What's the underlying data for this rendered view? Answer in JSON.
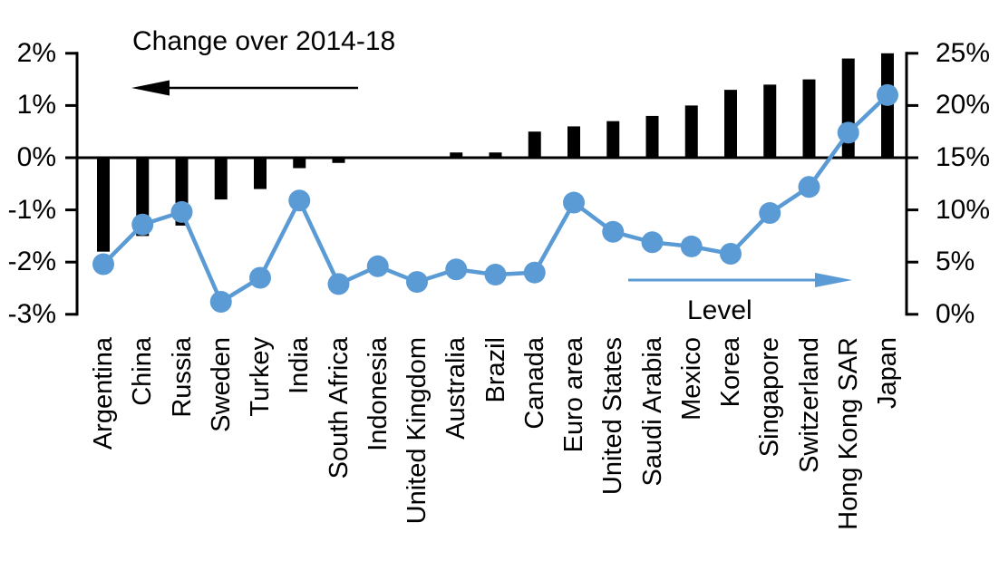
{
  "chart_data": {
    "type": "combo_bar_line",
    "title_bar_series": "Change over 2014-18",
    "title_line_series": "Level",
    "categories": [
      "Argentina",
      "China",
      "Russia",
      "Sweden",
      "Turkey",
      "India",
      "South Africa",
      "Indonesia",
      "United Kingdom",
      "Australia",
      "Brazil",
      "Canada",
      "Euro area",
      "United States",
      "Saudi Arabia",
      "Mexico",
      "Korea",
      "Singapore",
      "Switzerland",
      "Hong Kong SAR",
      "Japan"
    ],
    "series": [
      {
        "name": "Change over 2014-18",
        "type": "bar",
        "axis": "left",
        "color": "#000000",
        "values": [
          -1.8,
          -1.5,
          -1.3,
          -0.8,
          -0.6,
          -0.2,
          -0.1,
          0,
          0,
          0.1,
          0.1,
          0.5,
          0.6,
          0.7,
          0.8,
          1.0,
          1.3,
          1.4,
          1.5,
          1.9,
          2.0
        ]
      },
      {
        "name": "Level",
        "type": "line",
        "axis": "right",
        "color": "#5B9BD5",
        "values": [
          4.8,
          8.6,
          9.8,
          1.2,
          3.5,
          10.9,
          2.9,
          4.6,
          3.1,
          4.3,
          3.8,
          4.0,
          10.7,
          7.9,
          6.9,
          6.5,
          5.8,
          9.7,
          12.2,
          17.4,
          21.0
        ]
      }
    ],
    "left_axis": {
      "ticks": [
        "2%",
        "1%",
        "0%",
        "-1%",
        "-2%",
        "-3%"
      ],
      "values": [
        2,
        1,
        0,
        -1,
        -2,
        -3
      ],
      "min": -3,
      "max": 2
    },
    "right_axis": {
      "ticks": [
        "25%",
        "20%",
        "15%",
        "10%",
        "5%",
        "0%"
      ],
      "values": [
        25,
        20,
        15,
        10,
        5,
        0
      ],
      "min": 0,
      "max": 25
    },
    "grid": false,
    "annotations": [
      {
        "name": "change-arrow",
        "direction": "left",
        "color": "#000000"
      },
      {
        "name": "level-arrow",
        "direction": "right",
        "color": "#5B9BD5"
      }
    ]
  },
  "colors": {
    "bar": "#000000",
    "line": "#5B9BD5",
    "background": "#FFFFFF",
    "text": "#000000"
  }
}
